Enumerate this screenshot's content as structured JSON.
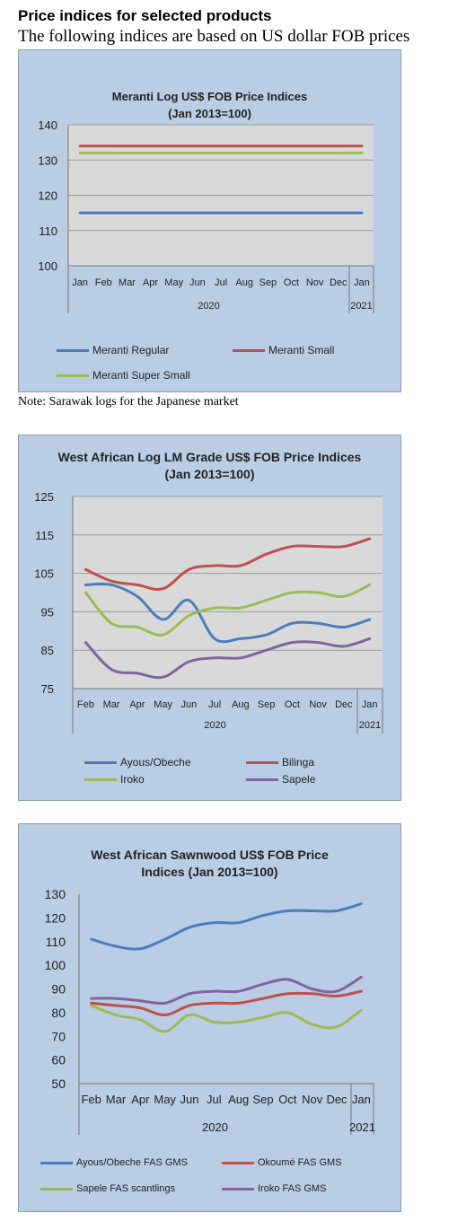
{
  "page": {
    "title": "Price indices for selected products",
    "subtitle": "The following indices are based on US dollar FOB prices",
    "note": "Note: Sarawak logs for the Japanese market"
  },
  "chart_data": [
    {
      "type": "line",
      "title_line1": "Meranti Log US$ FOB Price Indices",
      "title_line2": "(Jan 2013=100)",
      "categories": [
        "Jan",
        "Feb",
        "Mar",
        "Apr",
        "May",
        "Jun",
        "Jul",
        "Aug",
        "Sep",
        "Oct",
        "Nov",
        "Dec",
        "Jan"
      ],
      "year_labels": [
        "2020",
        "2021"
      ],
      "ylim": [
        100,
        140
      ],
      "yticks": [
        100,
        110,
        120,
        130,
        140
      ],
      "grid": true,
      "legend": "bottom",
      "series": [
        {
          "name": "Meranti Regular",
          "color": "#4a7ebb",
          "values": [
            115,
            115,
            115,
            115,
            115,
            115,
            115,
            115,
            115,
            115,
            115,
            115,
            115
          ]
        },
        {
          "name": "Meranti Small",
          "color": "#c0504d",
          "values": [
            134,
            134,
            134,
            134,
            134,
            134,
            134,
            134,
            134,
            134,
            134,
            134,
            134
          ]
        },
        {
          "name": "Meranti Super Small",
          "color": "#9bbb59",
          "values": [
            132,
            132,
            132,
            132,
            132,
            132,
            132,
            132,
            132,
            132,
            132,
            132,
            132
          ]
        }
      ]
    },
    {
      "type": "line",
      "title_line1": "West African Log LM Grade US$ FOB Price Indices",
      "title_line2": "(Jan 2013=100)",
      "categories": [
        "Feb",
        "Mar",
        "Apr",
        "May",
        "Jun",
        "Jul",
        "Aug",
        "Sep",
        "Oct",
        "Nov",
        "Dec",
        "Jan"
      ],
      "year_labels": [
        "2020",
        "2021"
      ],
      "ylim": [
        75,
        125
      ],
      "yticks": [
        75,
        85,
        95,
        105,
        115,
        125
      ],
      "grid": true,
      "legend": "bottom",
      "series": [
        {
          "name": "Ayous/Obeche",
          "color": "#4a7ebb",
          "values": [
            102,
            102,
            99,
            93,
            98,
            88,
            88,
            89,
            92,
            92,
            91,
            93
          ]
        },
        {
          "name": "Bilinga",
          "color": "#c0504d",
          "values": [
            106,
            103,
            102,
            101,
            106,
            107,
            107,
            110,
            112,
            112,
            112,
            114
          ]
        },
        {
          "name": "Iroko",
          "color": "#9bbb59",
          "values": [
            100,
            92,
            91,
            89,
            94,
            96,
            96,
            98,
            100,
            100,
            99,
            102
          ]
        },
        {
          "name": "Sapele",
          "color": "#8064a2",
          "values": [
            87,
            80,
            79,
            78,
            82,
            83,
            83,
            85,
            87,
            87,
            86,
            88
          ]
        }
      ]
    },
    {
      "type": "line",
      "title_line1": "West African Sawnwood US$ FOB Price",
      "title_line2": "Indices (Jan 2013=100)",
      "categories": [
        "Feb",
        "Mar",
        "Apr",
        "May",
        "Jun",
        "Jul",
        "Aug",
        "Sep",
        "Oct",
        "Nov",
        "Dec",
        "Jan"
      ],
      "year_labels": [
        "2020",
        "2021"
      ],
      "ylim": [
        50,
        130
      ],
      "yticks": [
        50,
        60,
        70,
        80,
        90,
        100,
        110,
        120,
        130
      ],
      "grid": false,
      "legend": "bottom",
      "series": [
        {
          "name": "Ayous/Obeche FAS GMS",
          "color": "#4a7ebb",
          "values": [
            111,
            108,
            107,
            111,
            116,
            118,
            118,
            121,
            123,
            123,
            123,
            126
          ]
        },
        {
          "name": "Okoumé FAS GMS",
          "color": "#c0504d",
          "values": [
            84,
            83,
            82,
            79,
            83,
            84,
            84,
            86,
            88,
            88,
            87,
            89
          ]
        },
        {
          "name": "Sapele FAS scantlings",
          "color": "#9bbb59",
          "values": [
            83,
            79,
            77,
            72,
            79,
            76,
            76,
            78,
            80,
            75,
            74,
            81
          ]
        },
        {
          "name": "Iroko FAS GMS",
          "color": "#8064a2",
          "values": [
            86,
            86,
            85,
            84,
            88,
            89,
            89,
            92,
            94,
            90,
            89,
            95
          ]
        }
      ]
    }
  ]
}
